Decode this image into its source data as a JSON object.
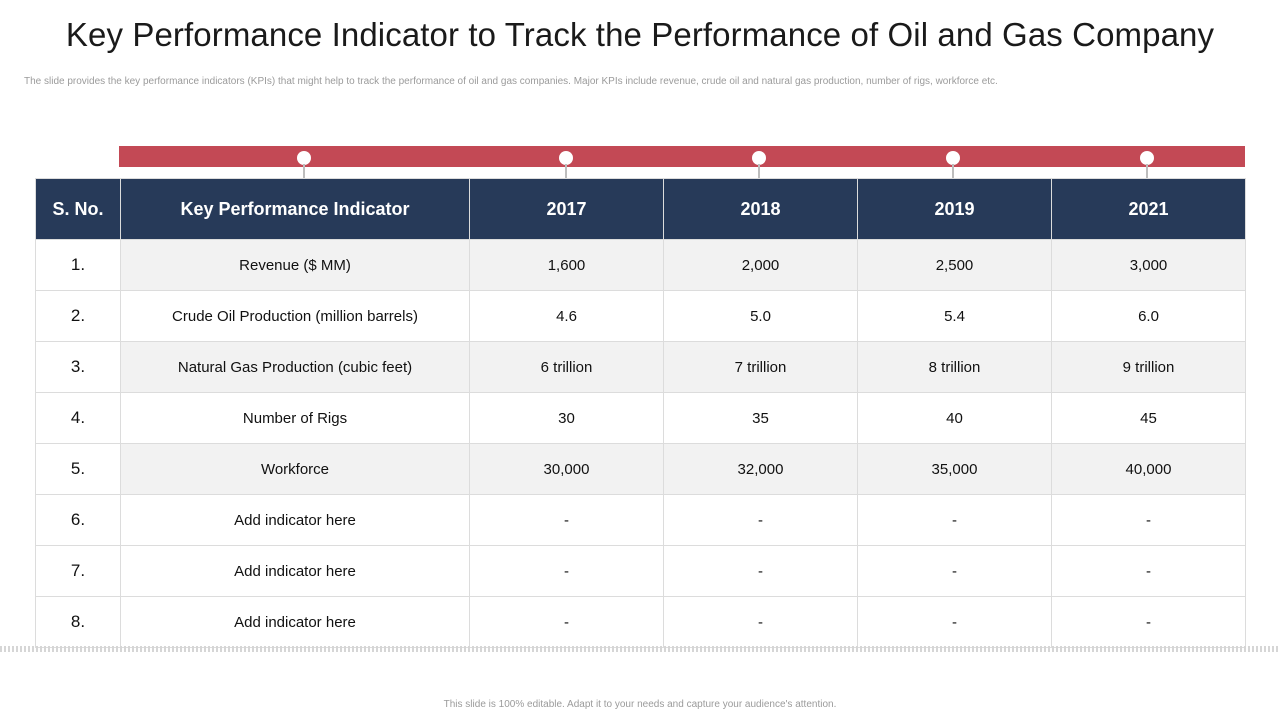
{
  "slide": {
    "title": "Key Performance Indicator to Track the Performance of Oil and Gas Company",
    "subtitle": "The slide provides the key performance indicators (KPIs) that might help to track the performance of oil and gas companies. Major KPIs include revenue, crude oil and natural gas production, number of rigs, workforce etc.",
    "footer": "This slide is 100% editable. Adapt it to your needs and capture your audience's attention."
  },
  "colors": {
    "accent_bar": "#c34955",
    "header_bg": "#273a59",
    "row_shade": "#f2f2f2"
  },
  "table": {
    "headers": [
      "S. No.",
      "Key Performance Indicator",
      "2017",
      "2018",
      "2019",
      "2021"
    ],
    "rows": [
      [
        "1.",
        "Revenue ($ MM)",
        "1,600",
        "2,000",
        "2,500",
        "3,000"
      ],
      [
        "2.",
        "Crude Oil Production (million barrels)",
        "4.6",
        "5.0",
        "5.4",
        "6.0"
      ],
      [
        "3.",
        "Natural Gas Production (cubic feet)",
        "6 trillion",
        "7 trillion",
        "8 trillion",
        "9 trillion"
      ],
      [
        "4.",
        "Number of Rigs",
        "30",
        "35",
        "40",
        "45"
      ],
      [
        "5.",
        "Workforce",
        "30,000",
        "32,000",
        "35,000",
        "40,000"
      ],
      [
        "6.",
        "Add indicator here",
        "-",
        "-",
        "-",
        "-"
      ],
      [
        "7.",
        "Add indicator here",
        "-",
        "-",
        "-",
        "-"
      ],
      [
        "8.",
        "Add indicator here",
        "-",
        "-",
        "-",
        "-"
      ]
    ]
  }
}
